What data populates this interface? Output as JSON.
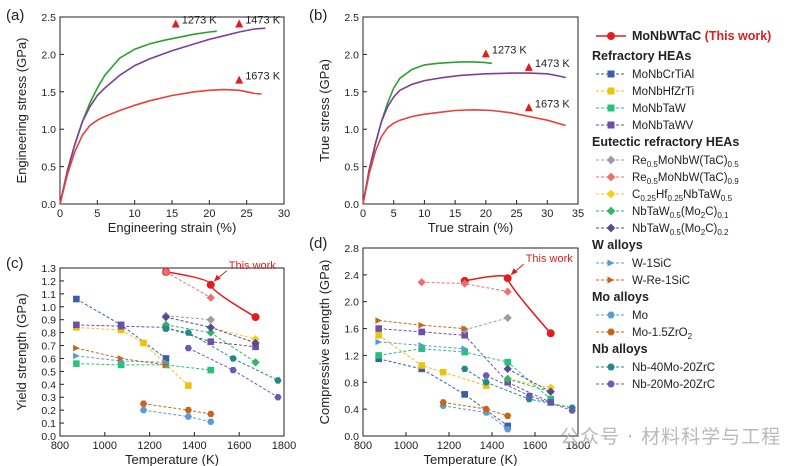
{
  "watermark": "公众号 · 材料科学与工程",
  "legend": {
    "top_entry": {
      "label": "MoNbWTaC",
      "suffix": "(This work)",
      "color": "#e11d1d",
      "marker": "circle"
    },
    "groups": [
      {
        "title": "Refractory HEAs",
        "items": [
          {
            "label": "MoNbCrTiAl",
            "color": "#3a5ea8",
            "marker": "square"
          },
          {
            "label": "MoNbHfZrTi",
            "color": "#f0c20c",
            "marker": "square"
          },
          {
            "label": "MoNbTaW",
            "color": "#27c27a",
            "marker": "square"
          },
          {
            "label": "MoNbTaWV",
            "color": "#6b4fa8",
            "marker": "square"
          }
        ]
      },
      {
        "title": "Eutectic refractory HEAs",
        "items": [
          {
            "label": "Re0.5MoNbW(TaC)0.5",
            "color": "#9c9c9c",
            "marker": "diamond"
          },
          {
            "label": "Re0.5MoNbW(TaC)0.9",
            "color": "#ee6f6f",
            "marker": "diamond"
          },
          {
            "label": "C0.25Hf0.25NbTaW0.5",
            "color": "#f4cf1a",
            "marker": "diamond"
          },
          {
            "label": "NbTaW0.5(Mo2C)0.1",
            "color": "#33b564",
            "marker": "diamond"
          },
          {
            "label": "NbTaW0.5(Mo2C)0.2",
            "color": "#544b92",
            "marker": "diamond"
          }
        ]
      },
      {
        "title": "W alloys",
        "items": [
          {
            "label": "W-1SiC",
            "color": "#5b9bd5",
            "marker": "triangle-right"
          },
          {
            "label": "W-Re-1SiC",
            "color": "#c8651b",
            "marker": "triangle-right"
          }
        ]
      },
      {
        "title": "Mo alloys",
        "items": [
          {
            "label": "Mo",
            "color": "#5b9bd5",
            "marker": "hexagon"
          },
          {
            "label": "Mo-1.5ZrO2",
            "color": "#c8651b",
            "marker": "hexagon"
          }
        ]
      },
      {
        "title": "Nb alloys",
        "items": [
          {
            "label": "Nb-40Mo-20ZrC",
            "color": "#1f8a86",
            "marker": "hexagon"
          },
          {
            "label": "Nb-20Mo-20ZrC",
            "color": "#6a5bb0",
            "marker": "hexagon"
          }
        ]
      }
    ]
  },
  "chart_data": [
    {
      "panel": "(a)",
      "type": "line",
      "xlabel": "Engineering strain (%)",
      "ylabel": "Engineering stress (GPa)",
      "xlim": [
        0,
        30
      ],
      "ylim": [
        0,
        2.5
      ],
      "xticks": [
        0,
        5,
        10,
        15,
        20,
        25,
        30
      ],
      "yticks": [
        0.0,
        0.5,
        1.0,
        1.5,
        2.0,
        2.5
      ],
      "series": [
        {
          "name": "1273 K",
          "color": "#2ca02c",
          "x": [
            0,
            1,
            2,
            3,
            4,
            5,
            6,
            8,
            10,
            12,
            14,
            16,
            18,
            20,
            21
          ],
          "y": [
            0,
            0.45,
            0.8,
            1.1,
            1.35,
            1.55,
            1.72,
            1.95,
            2.07,
            2.14,
            2.19,
            2.23,
            2.27,
            2.3,
            2.31
          ]
        },
        {
          "name": "1473 K",
          "color": "#7b3f9e",
          "x": [
            0,
            1,
            2,
            3,
            4,
            5,
            6,
            8,
            10,
            12,
            15,
            18,
            20,
            22,
            24,
            26,
            27.5
          ],
          "y": [
            0,
            0.45,
            0.8,
            1.1,
            1.3,
            1.45,
            1.55,
            1.72,
            1.85,
            1.94,
            2.05,
            2.14,
            2.2,
            2.25,
            2.3,
            2.34,
            2.35
          ]
        },
        {
          "name": "1673 K",
          "color": "#e8413a",
          "x": [
            0,
            1,
            2,
            3,
            4,
            5,
            6,
            8,
            10,
            12,
            15,
            18,
            20,
            22,
            24,
            25,
            26,
            27
          ],
          "y": [
            0,
            0.4,
            0.7,
            0.92,
            1.05,
            1.12,
            1.17,
            1.25,
            1.32,
            1.38,
            1.45,
            1.5,
            1.52,
            1.53,
            1.52,
            1.5,
            1.48,
            1.47
          ]
        }
      ],
      "annotations": [
        {
          "text": "1273 K",
          "x": 17.5,
          "y": 2.45,
          "arrow_x": 15.5,
          "arrow_y": 2.4,
          "color": "#e11d1d"
        },
        {
          "text": "1473 K",
          "x": 26,
          "y": 2.45,
          "arrow_x": 24,
          "arrow_y": 2.4,
          "color": "#e11d1d"
        },
        {
          "text": "1673 K",
          "x": 26,
          "y": 1.72,
          "arrow_x": 24,
          "arrow_y": 1.65,
          "color": "#e11d1d"
        }
      ]
    },
    {
      "panel": "(b)",
      "type": "line",
      "xlabel": "True strain (%)",
      "ylabel": "True stress (GPa)",
      "xlim": [
        0,
        35
      ],
      "ylim": [
        0,
        2.5
      ],
      "xticks": [
        0,
        5,
        10,
        15,
        20,
        25,
        30,
        35
      ],
      "yticks": [
        0.0,
        0.5,
        1.0,
        1.5,
        2.0,
        2.5
      ],
      "series": [
        {
          "name": "1273 K",
          "color": "#2ca02c",
          "x": [
            0,
            1,
            2,
            3,
            4,
            5,
            6,
            8,
            10,
            12,
            14,
            16,
            18,
            20,
            21
          ],
          "y": [
            0,
            0.45,
            0.8,
            1.1,
            1.35,
            1.55,
            1.68,
            1.8,
            1.86,
            1.88,
            1.89,
            1.9,
            1.9,
            1.89,
            1.88
          ]
        },
        {
          "name": "1473 K",
          "color": "#7b3f9e",
          "x": [
            0,
            1,
            2,
            3,
            4,
            5,
            6,
            8,
            10,
            13,
            16,
            20,
            24,
            27,
            30,
            32,
            33
          ],
          "y": [
            0,
            0.45,
            0.8,
            1.1,
            1.3,
            1.43,
            1.52,
            1.6,
            1.65,
            1.69,
            1.72,
            1.74,
            1.75,
            1.75,
            1.74,
            1.71,
            1.69
          ]
        },
        {
          "name": "1673 K",
          "color": "#e8413a",
          "x": [
            0,
            1,
            2,
            3,
            4,
            5,
            6,
            8,
            10,
            12,
            15,
            18,
            21,
            24,
            27,
            30,
            33
          ],
          "y": [
            0,
            0.4,
            0.7,
            0.9,
            1.02,
            1.08,
            1.12,
            1.17,
            1.2,
            1.22,
            1.25,
            1.26,
            1.25,
            1.22,
            1.17,
            1.12,
            1.05
          ]
        }
      ],
      "annotations": [
        {
          "text": "1273 K",
          "x": 21,
          "y": 2.05,
          "arrow_x": 20,
          "arrow_y": 2.0,
          "color": "#e11d1d"
        },
        {
          "text": "1473 K",
          "x": 30,
          "y": 1.85,
          "arrow_x": 27,
          "arrow_y": 1.82,
          "color": "#e11d1d"
        },
        {
          "text": "1673 K",
          "x": 29,
          "y": 1.33,
          "arrow_x": 27,
          "arrow_y": 1.28,
          "color": "#e11d1d"
        }
      ]
    },
    {
      "panel": "(c)",
      "type": "scatter",
      "xlabel": "Temperature (K)",
      "ylabel": "Yield strength (GPa)",
      "xlim": [
        800,
        1800
      ],
      "ylim": [
        0,
        1.3
      ],
      "xticks": [
        800,
        1000,
        1200,
        1400,
        1600,
        1800
      ],
      "yticks": [
        0.0,
        0.1,
        0.2,
        0.3,
        0.4,
        0.5,
        0.6,
        0.7,
        0.8,
        0.9,
        1.0,
        1.1,
        1.2,
        1.3
      ],
      "this_work_label": "This work",
      "series": [
        {
          "name": "MoNbWTaC",
          "x": [
            1273,
            1473,
            1673
          ],
          "y": [
            1.27,
            1.17,
            0.92
          ]
        },
        {
          "name": "MoNbCrTiAl",
          "x": [
            873,
            1073,
            1273
          ],
          "y": [
            1.06,
            0.86,
            0.6
          ]
        },
        {
          "name": "MoNbHfZrTi",
          "x": [
            873,
            1073,
            1173,
            1373
          ],
          "y": [
            0.84,
            0.82,
            0.72,
            0.39
          ]
        },
        {
          "name": "MoNbTaW",
          "x": [
            873,
            1073,
            1273,
            1473
          ],
          "y": [
            0.56,
            0.55,
            0.55,
            0.51
          ]
        },
        {
          "name": "MoNbTaWV",
          "x": [
            873,
            1073,
            1273,
            1473,
            1673
          ],
          "y": [
            0.86,
            0.85,
            0.84,
            0.73,
            0.69
          ]
        },
        {
          "name": "Re0.5MoNbW(TaC)0.5",
          "x": [
            1273,
            1473
          ],
          "y": [
            0.93,
            0.9
          ]
        },
        {
          "name": "Re0.5MoNbW(TaC)0.9",
          "x": [
            1273,
            1473
          ],
          "y": [
            1.27,
            1.07
          ]
        },
        {
          "name": "C0.25Hf0.25NbTaW0.5",
          "x": [
            1473,
            1673
          ],
          "y": [
            0.84,
            0.75
          ]
        },
        {
          "name": "NbTaW0.5(Mo2C)0.1",
          "x": [
            1273,
            1473,
            1673
          ],
          "y": [
            0.86,
            0.8,
            0.57
          ]
        },
        {
          "name": "NbTaW0.5(Mo2C)0.2",
          "x": [
            1273,
            1473,
            1673
          ],
          "y": [
            0.92,
            0.84,
            0.72
          ]
        },
        {
          "name": "W-1SiC",
          "x": [
            873,
            1073,
            1273
          ],
          "y": [
            0.62,
            0.58,
            0.57
          ]
        },
        {
          "name": "W-Re-1SiC",
          "x": [
            873,
            1073,
            1273
          ],
          "y": [
            0.68,
            0.6,
            0.55
          ]
        },
        {
          "name": "Mo",
          "x": [
            1173,
            1373,
            1473
          ],
          "y": [
            0.2,
            0.15,
            0.11
          ]
        },
        {
          "name": "Mo-1.5ZrO2",
          "x": [
            1173,
            1373,
            1473
          ],
          "y": [
            0.25,
            0.2,
            0.17
          ]
        },
        {
          "name": "Nb-40Mo-20ZrC",
          "x": [
            1273,
            1373,
            1573,
            1773
          ],
          "y": [
            0.83,
            0.8,
            0.6,
            0.43
          ]
        },
        {
          "name": "Nb-20Mo-20ZrC",
          "x": [
            1373,
            1573,
            1773
          ],
          "y": [
            0.68,
            0.51,
            0.3
          ]
        }
      ]
    },
    {
      "panel": "(d)",
      "type": "scatter",
      "xlabel": "Temperature (K)",
      "ylabel": "Compressive strength (GPa)",
      "xlim": [
        800,
        1800
      ],
      "ylim": [
        0,
        2.8
      ],
      "xticks": [
        800,
        1000,
        1200,
        1400,
        1600,
        1800
      ],
      "yticks": [
        0.0,
        0.4,
        0.8,
        1.2,
        1.6,
        2.0,
        2.4,
        2.8
      ],
      "this_work_label": "This work",
      "series": [
        {
          "name": "MoNbWTaC",
          "x": [
            1273,
            1473,
            1673
          ],
          "y": [
            2.31,
            2.35,
            1.53
          ]
        },
        {
          "name": "MoNbCrTiAl",
          "x": [
            873,
            1073,
            1273,
            1473
          ],
          "y": [
            1.15,
            1.0,
            0.62,
            0.15
          ]
        },
        {
          "name": "MoNbHfZrTi",
          "x": [
            873,
            1073,
            1173,
            1373
          ],
          "y": [
            1.5,
            1.05,
            0.95,
            0.75
          ]
        },
        {
          "name": "MoNbTaW",
          "x": [
            873,
            1073,
            1273,
            1473,
            1673
          ],
          "y": [
            1.2,
            1.3,
            1.25,
            1.1,
            0.55
          ]
        },
        {
          "name": "MoNbTaWV",
          "x": [
            873,
            1073,
            1273,
            1473,
            1673
          ],
          "y": [
            1.6,
            1.55,
            1.5,
            0.8,
            0.5
          ]
        },
        {
          "name": "Re0.5MoNbW(TaC)0.5",
          "x": [
            1273,
            1473
          ],
          "y": [
            1.58,
            1.76
          ]
        },
        {
          "name": "Re0.5MoNbW(TaC)0.9",
          "x": [
            1073,
            1273,
            1473
          ],
          "y": [
            2.29,
            2.27,
            2.15
          ]
        },
        {
          "name": "C0.25Hf0.25NbTaW0.5",
          "x": [
            1473,
            1673
          ],
          "y": [
            0.85,
            0.72
          ]
        },
        {
          "name": "NbTaW0.5(Mo2C)0.1",
          "x": [
            1473,
            1673
          ],
          "y": [
            0.85,
            0.66
          ]
        },
        {
          "name": "NbTaW0.5(Mo2C)0.2",
          "x": [
            1473,
            1673
          ],
          "y": [
            1.0,
            0.66
          ]
        },
        {
          "name": "W-1SiC",
          "x": [
            873,
            1073,
            1273
          ],
          "y": [
            1.4,
            1.35,
            1.3
          ]
        },
        {
          "name": "W-Re-1SiC",
          "x": [
            873,
            1073,
            1273
          ],
          "y": [
            1.72,
            1.65,
            1.6
          ]
        },
        {
          "name": "Mo",
          "x": [
            1173,
            1373,
            1473
          ],
          "y": [
            0.45,
            0.35,
            0.1
          ]
        },
        {
          "name": "Mo-1.5ZrO2",
          "x": [
            1173,
            1373,
            1473
          ],
          "y": [
            0.5,
            0.4,
            0.3
          ]
        },
        {
          "name": "Nb-40Mo-20ZrC",
          "x": [
            1273,
            1373,
            1573,
            1773
          ],
          "y": [
            1.0,
            0.8,
            0.55,
            0.42
          ]
        },
        {
          "name": "Nb-20Mo-20ZrC",
          "x": [
            1373,
            1573,
            1773
          ],
          "y": [
            0.9,
            0.6,
            0.38
          ]
        }
      ]
    }
  ]
}
